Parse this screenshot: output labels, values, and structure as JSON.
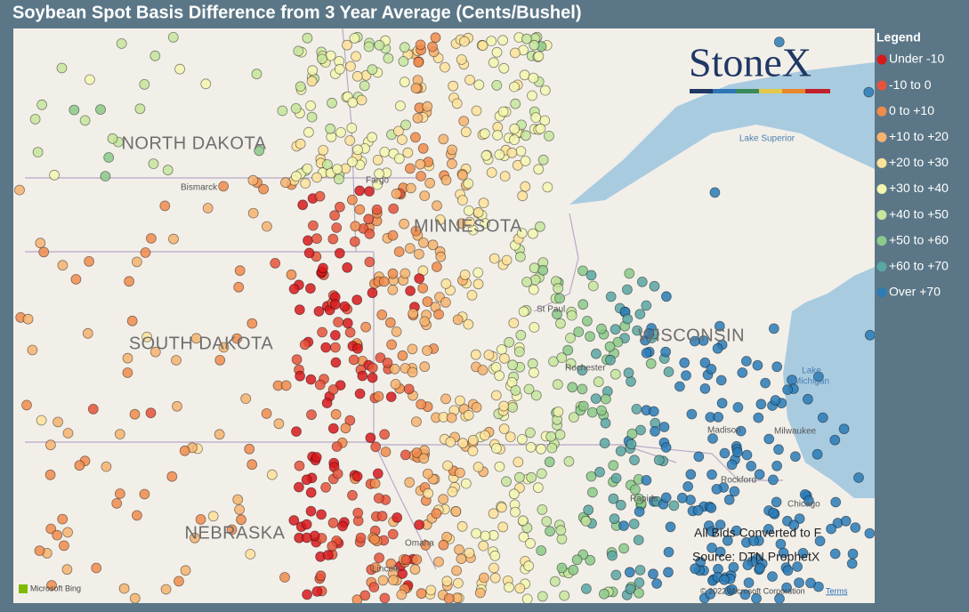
{
  "title": "Soybean Spot Basis Difference from 3 Year Average (Cents/Bushel)",
  "legend": {
    "title": "Legend",
    "items": [
      {
        "label": "Under -10",
        "color": "#d7191c"
      },
      {
        "label": "-10 to 0",
        "color": "#e5533a"
      },
      {
        "label": "0 to +10",
        "color": "#f08b4c"
      },
      {
        "label": "+10 to +20",
        "color": "#f6b36e"
      },
      {
        "label": "+20 to +30",
        "color": "#fde29a"
      },
      {
        "label": "+30 to +40",
        "color": "#f4f6b0"
      },
      {
        "label": "+40 to +50",
        "color": "#c7e59e"
      },
      {
        "label": "+50 to +60",
        "color": "#8cc98a"
      },
      {
        "label": "+60 to +70",
        "color": "#5aa6a2"
      },
      {
        "label": "Over +70",
        "color": "#2c7bb6"
      }
    ]
  },
  "map": {
    "states": [
      "NORTH DAKOTA",
      "MINNESOTA",
      "SOUTH DAKOTA",
      "WISCONSIN",
      "NEBRASKA"
    ],
    "cities": [
      "Fargo",
      "Bismarck",
      "St Paul",
      "Rochester",
      "Madison",
      "Milwaukee",
      "Rockford",
      "Chicago",
      "Rapids",
      "Omaha",
      "Lincoln"
    ],
    "water": [
      "Lake Superior",
      "Lake",
      "Michigan"
    ],
    "logo": "StoneX",
    "notes": [
      "All Bids Converted to F",
      "Source: DTN ProphetX"
    ],
    "attribution": "Microsoft Bing",
    "copyright": "© 2022 Microsoft Corporation",
    "terms": "Terms"
  }
}
